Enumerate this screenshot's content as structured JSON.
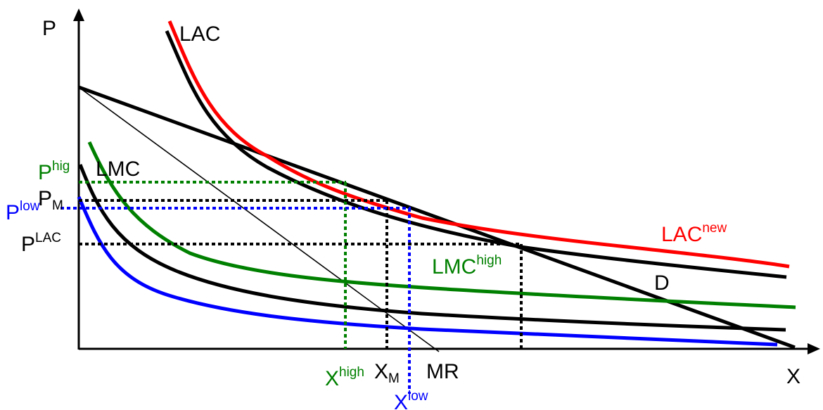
{
  "colors": {
    "black": "#000000",
    "red": "#ff0000",
    "green": "#008000",
    "blue": "#0000ff",
    "background": "#ffffff"
  },
  "axes": {
    "y_label": "P",
    "x_label": "X"
  },
  "curves": {
    "lac": {
      "label": "LAC",
      "color": "#000000"
    },
    "lac_new": {
      "label": "LAC",
      "sup": "new",
      "color": "#ff0000"
    },
    "lmc": {
      "label": "LMC",
      "color": "#000000"
    },
    "lmc_high": {
      "label": "LMC",
      "sup": "high",
      "color": "#008000"
    },
    "lmc_low": {
      "color": "#0000ff"
    },
    "demand": {
      "label": "D",
      "color": "#000000"
    },
    "marginal_revenue": {
      "label": "MR",
      "color": "#000000"
    }
  },
  "price_levels": {
    "p_high": {
      "label": "P",
      "sup": "hig",
      "color": "#008000"
    },
    "p_m": {
      "label": "P",
      "sub": "M",
      "color": "#000000"
    },
    "p_low": {
      "label": "P",
      "sup": "low",
      "color": "#0000ff"
    },
    "p_lac": {
      "label": "P",
      "sup": "LAC",
      "color": "#000000"
    }
  },
  "quantity_levels": {
    "x_high": {
      "label": "X",
      "sup": "high",
      "color": "#008000"
    },
    "x_m": {
      "label": "X",
      "sub": "M",
      "color": "#000000"
    },
    "x_low": {
      "label": "X",
      "sup": "low",
      "color": "#0000ff"
    }
  }
}
